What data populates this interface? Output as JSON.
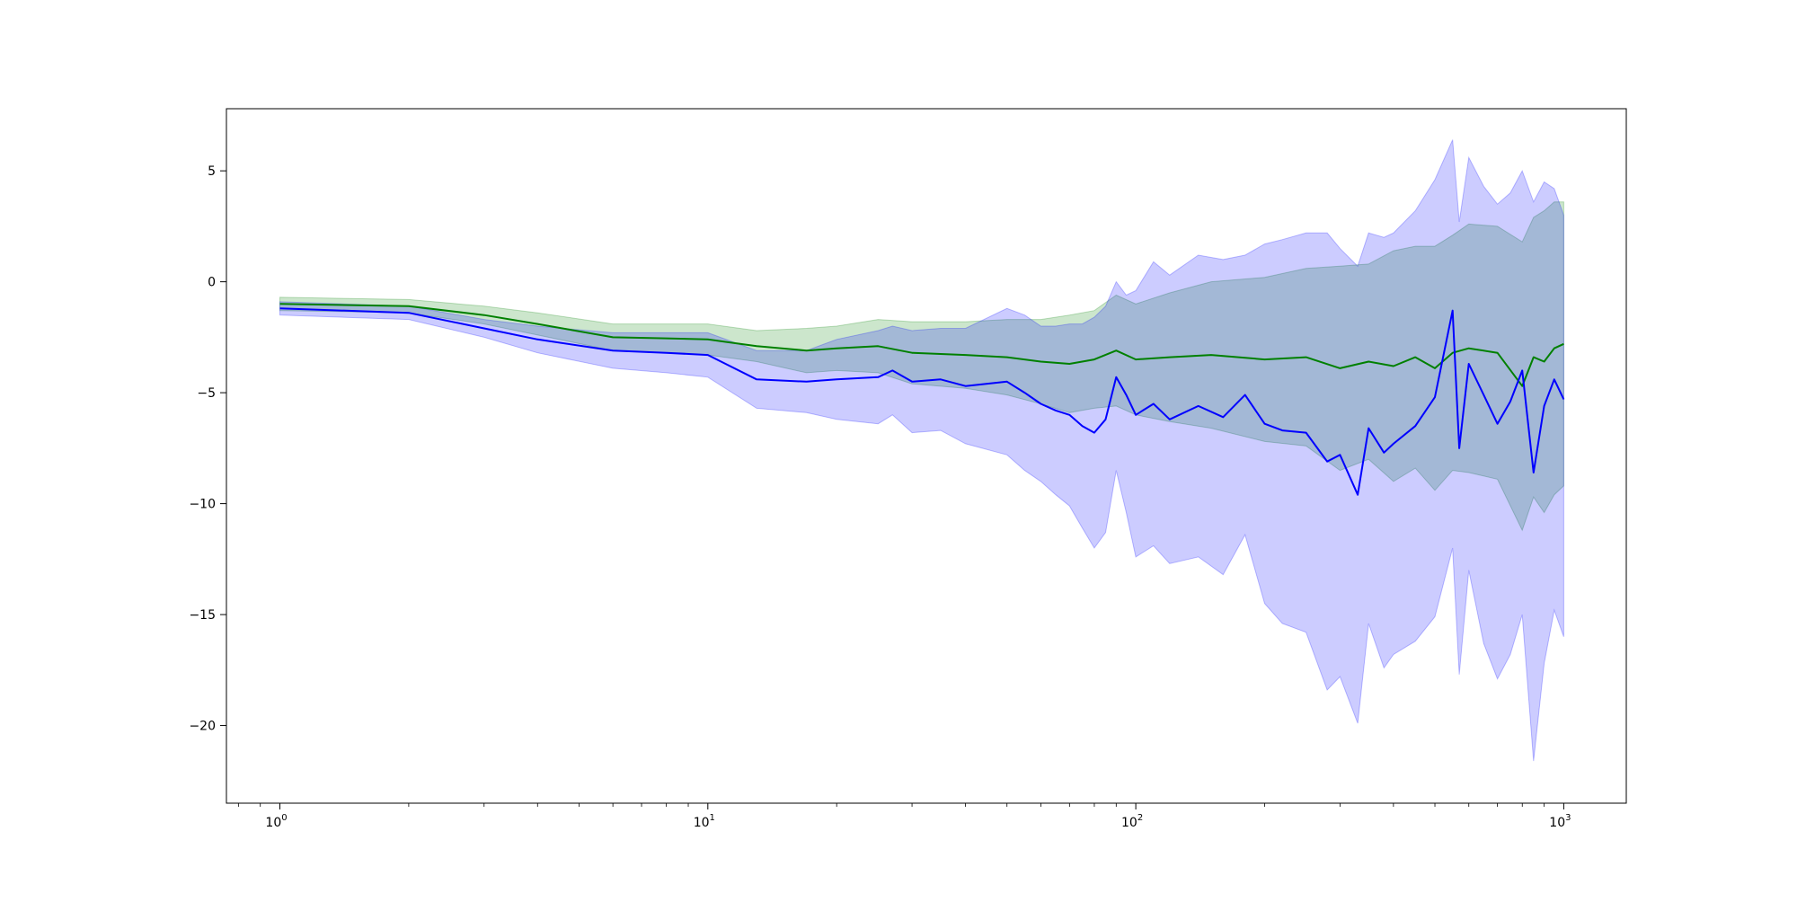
{
  "chart_data": {
    "type": "line",
    "x_scale": "log",
    "xlim": [
      0.75,
      1400
    ],
    "ylim": [
      -23.5,
      7.8
    ],
    "x_ticks": [
      {
        "value": 1,
        "label": "10",
        "exp": "0"
      },
      {
        "value": 10,
        "label": "10",
        "exp": "1"
      },
      {
        "value": 100,
        "label": "10",
        "exp": "2"
      },
      {
        "value": 1000,
        "label": "10",
        "exp": "3"
      }
    ],
    "y_ticks": [
      {
        "value": 5,
        "label": "5"
      },
      {
        "value": 0,
        "label": "0"
      },
      {
        "value": -5,
        "label": "−5"
      },
      {
        "value": -10,
        "label": "−10"
      },
      {
        "value": -15,
        "label": "−15"
      },
      {
        "value": -20,
        "label": "−20"
      }
    ],
    "grid": false,
    "legend": "none",
    "series": [
      {
        "color": "#008000",
        "band_color": "#008000",
        "band_opacity": 0.2,
        "x": [
          1,
          2,
          3,
          4,
          6,
          8,
          10,
          13,
          17,
          20,
          25,
          30,
          40,
          50,
          60,
          70,
          80,
          90,
          100,
          120,
          150,
          200,
          250,
          300,
          350,
          400,
          450,
          500,
          550,
          600,
          700,
          800,
          850,
          900,
          950,
          1000
        ],
        "values": [
          -1.0,
          -1.1,
          -1.5,
          -1.9,
          -2.5,
          -2.55,
          -2.6,
          -2.9,
          -3.1,
          -3.0,
          -2.9,
          -3.2,
          -3.3,
          -3.4,
          -3.6,
          -3.7,
          -3.5,
          -3.1,
          -3.5,
          -3.4,
          -3.3,
          -3.5,
          -3.4,
          -3.9,
          -3.6,
          -3.8,
          -3.4,
          -3.9,
          -3.2,
          -3.0,
          -3.2,
          -4.7,
          -3.4,
          -3.6,
          -3.0,
          -2.8
        ],
        "lower": [
          -1.3,
          -1.4,
          -1.9,
          -2.4,
          -3.1,
          -3.2,
          -3.3,
          -3.6,
          -4.1,
          -4.0,
          -4.1,
          -4.6,
          -4.8,
          -5.1,
          -5.5,
          -5.9,
          -5.7,
          -5.6,
          -6.0,
          -6.3,
          -6.6,
          -7.2,
          -7.4,
          -8.5,
          -8.0,
          -9.0,
          -8.4,
          -9.4,
          -8.5,
          -8.6,
          -8.9,
          -11.2,
          -9.7,
          -10.4,
          -9.6,
          -9.2
        ],
        "upper": [
          -0.7,
          -0.8,
          -1.1,
          -1.4,
          -1.9,
          -1.9,
          -1.9,
          -2.2,
          -2.1,
          -2.0,
          -1.7,
          -1.8,
          -1.8,
          -1.7,
          -1.7,
          -1.5,
          -1.3,
          -0.6,
          -1.0,
          -0.5,
          0.0,
          0.2,
          0.6,
          0.7,
          0.8,
          1.4,
          1.6,
          1.6,
          2.1,
          2.6,
          2.5,
          1.8,
          2.9,
          3.2,
          3.6,
          3.6
        ]
      },
      {
        "color": "#0000ff",
        "band_color": "#0000ff",
        "band_opacity": 0.2,
        "x": [
          1,
          2,
          3,
          4,
          6,
          8,
          10,
          13,
          17,
          20,
          25,
          27,
          30,
          35,
          40,
          50,
          55,
          60,
          65,
          70,
          75,
          80,
          85,
          90,
          95,
          100,
          110,
          120,
          140,
          160,
          180,
          200,
          220,
          250,
          280,
          300,
          330,
          350,
          380,
          400,
          450,
          500,
          550,
          570,
          600,
          650,
          700,
          750,
          800,
          850,
          900,
          950,
          1000
        ],
        "values": [
          -1.2,
          -1.4,
          -2.1,
          -2.6,
          -3.1,
          -3.2,
          -3.3,
          -4.4,
          -4.5,
          -4.4,
          -4.3,
          -4.0,
          -4.5,
          -4.4,
          -4.7,
          -4.5,
          -5.0,
          -5.5,
          -5.8,
          -6.0,
          -6.5,
          -6.8,
          -6.2,
          -4.3,
          -5.1,
          -6.0,
          -5.5,
          -6.2,
          -5.6,
          -6.1,
          -5.1,
          -6.4,
          -6.7,
          -6.8,
          -8.1,
          -7.8,
          -9.6,
          -6.6,
          -7.7,
          -7.3,
          -6.5,
          -5.2,
          -1.3,
          -7.5,
          -3.7,
          -5.1,
          -6.4,
          -5.4,
          -4.0,
          -8.6,
          -5.6,
          -4.4,
          -5.3
        ],
        "lower": [
          -1.5,
          -1.7,
          -2.5,
          -3.2,
          -3.9,
          -4.1,
          -4.3,
          -5.7,
          -5.9,
          -6.2,
          -6.4,
          -6.0,
          -6.8,
          -6.7,
          -7.3,
          -7.8,
          -8.5,
          -9.0,
          -9.6,
          -10.1,
          -11.1,
          -12.0,
          -11.3,
          -8.5,
          -10.4,
          -12.4,
          -11.9,
          -12.7,
          -12.4,
          -13.2,
          -11.4,
          -14.5,
          -15.4,
          -15.8,
          -18.4,
          -17.8,
          -19.9,
          -15.4,
          -17.4,
          -16.8,
          -16.2,
          -15.1,
          -12.0,
          -17.7,
          -13.0,
          -16.3,
          -17.9,
          -16.8,
          -15.0,
          -21.6,
          -17.2,
          -14.8,
          -16.0
        ],
        "upper": [
          -0.9,
          -1.1,
          -1.7,
          -2.0,
          -2.3,
          -2.3,
          -2.3,
          -3.1,
          -3.1,
          -2.6,
          -2.2,
          -2.0,
          -2.2,
          -2.1,
          -2.1,
          -1.2,
          -1.5,
          -2.0,
          -2.0,
          -1.9,
          -1.9,
          -1.6,
          -1.1,
          0.0,
          -0.6,
          -0.4,
          0.9,
          0.3,
          1.2,
          1.0,
          1.2,
          1.7,
          1.9,
          2.2,
          2.2,
          1.5,
          0.7,
          2.2,
          2.0,
          2.2,
          3.2,
          4.6,
          6.4,
          2.7,
          5.6,
          4.3,
          3.5,
          4.0,
          5.0,
          3.6,
          4.5,
          4.2,
          3.0
        ]
      }
    ]
  }
}
